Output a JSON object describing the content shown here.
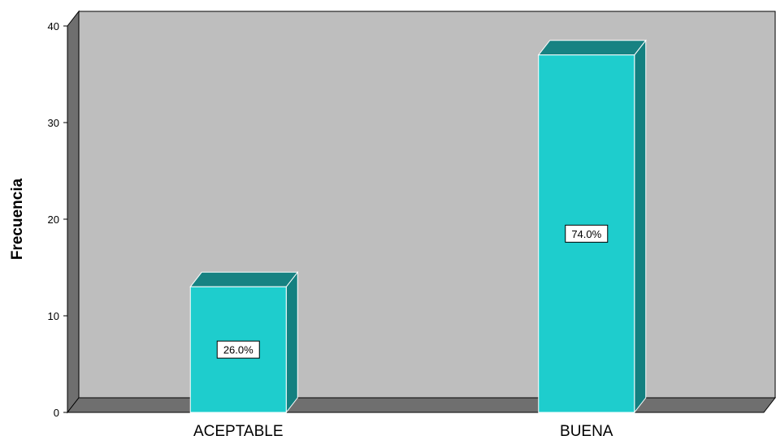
{
  "chart_data": {
    "type": "bar",
    "categories": [
      "ACEPTABLE",
      "BUENA"
    ],
    "values": [
      13,
      37
    ],
    "data_labels": [
      "26.0%",
      "74.0%"
    ],
    "ylabel": "Frecuencia",
    "xlabel": "",
    "ylim": [
      0,
      40
    ],
    "yticks": [
      0,
      10,
      20,
      30,
      40
    ],
    "grid": false,
    "style": "3d",
    "colors": {
      "bar_front": "#1ecdcd",
      "bar_side": "#138080",
      "bar_top": "#178282",
      "plot_back": "#bebebe",
      "plot_wall": "#6f6f6f",
      "plot_floor": "#6f6f6f"
    }
  }
}
